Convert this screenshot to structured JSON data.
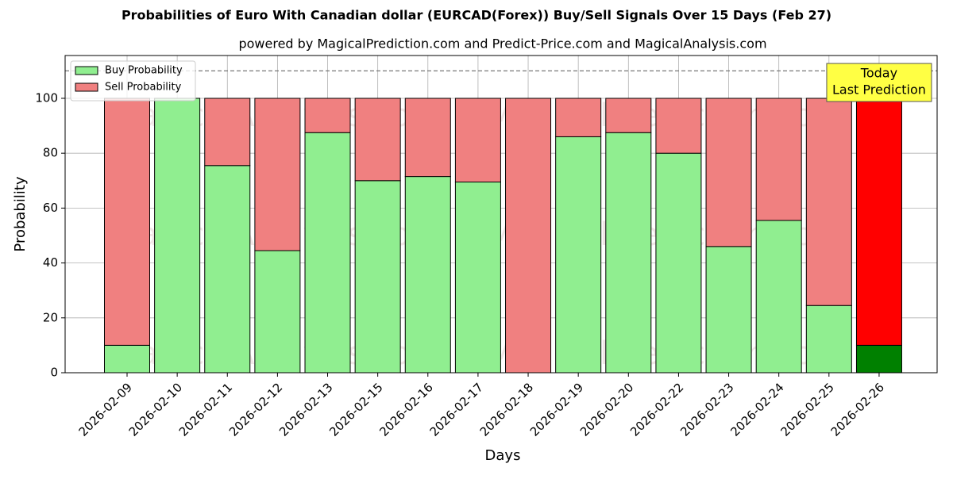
{
  "chart_data": {
    "type": "stacked_bar",
    "title": "Probabilities of Euro With Canadian dollar (EURCAD(Forex)) Buy/Sell Signals Over 15 Days (Feb 27)",
    "subtitle": "powered by MagicalPrediction.com and Predict-Price.com and MagicalAnalysis.com",
    "x_label": "Days",
    "y_label": "Probability",
    "categories": [
      "2026-02-09",
      "2026-02-10",
      "2026-02-11",
      "2026-02-12",
      "2026-02-13",
      "2026-02-15",
      "2026-02-16",
      "2026-02-17",
      "2026-02-18",
      "2026-02-19",
      "2026-02-20",
      "2026-02-22",
      "2026-02-23",
      "2026-02-24",
      "2026-02-25",
      "2026-02-26"
    ],
    "series": [
      {
        "name": "Buy Probability",
        "color": "#90ee90",
        "today_color": "#008000",
        "values": [
          10,
          100,
          75.5,
          44.5,
          87.5,
          70,
          71.5,
          69.5,
          0,
          86,
          87.5,
          80,
          46,
          55.5,
          24.5,
          10
        ]
      },
      {
        "name": "Sell Probability",
        "color": "#f08080",
        "today_color": "#ff0000",
        "values": [
          90,
          0,
          24.5,
          55.5,
          12.5,
          30,
          28.5,
          30.5,
          100,
          14,
          12.5,
          20,
          54,
          44.5,
          75.5,
          90
        ]
      }
    ],
    "ylim": [
      0,
      115.6
    ],
    "yticks": [
      0,
      20,
      40,
      60,
      80,
      100
    ],
    "reference_line": 110,
    "grid": true,
    "legend": "upper left",
    "annotation": [
      "Today",
      "Last Prediction"
    ],
    "watermarks": [
      "MagicalAnalysis.com",
      "MagicalPrediction.com"
    ]
  }
}
